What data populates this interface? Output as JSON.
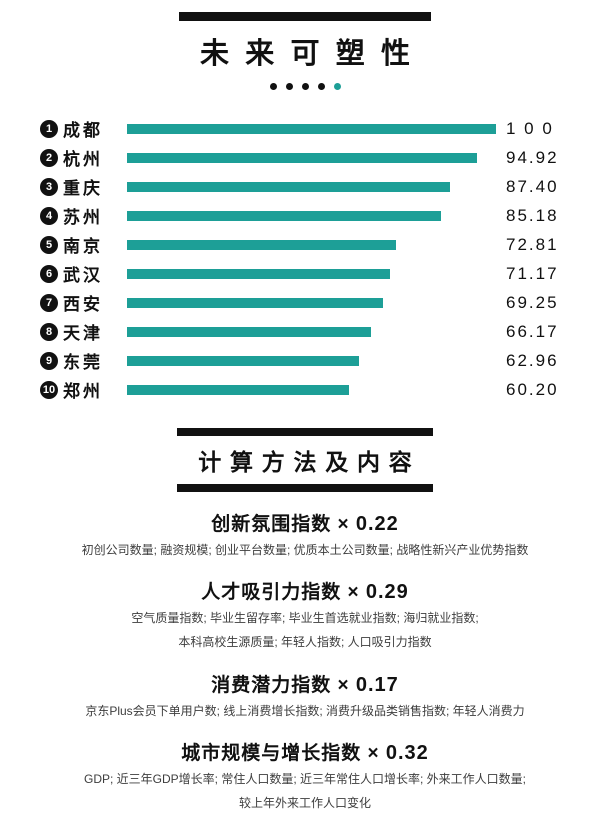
{
  "colors": {
    "accent": "#1d9f97",
    "ink": "#111111"
  },
  "header": {
    "title": "未来可塑性",
    "dots": {
      "count": 5,
      "accent_index": 4
    }
  },
  "chart_data": {
    "type": "bar",
    "orientation": "horizontal",
    "title": "未来可塑性",
    "categories": [
      "成都",
      "杭州",
      "重庆",
      "苏州",
      "南京",
      "武汉",
      "西安",
      "天津",
      "东莞",
      "郑州"
    ],
    "ranks": [
      1,
      2,
      3,
      4,
      5,
      6,
      7,
      8,
      9,
      10
    ],
    "values": [
      100,
      94.92,
      87.4,
      85.18,
      72.81,
      71.17,
      69.25,
      66.17,
      62.96,
      60.2
    ],
    "value_labels": [
      "1 0 0",
      "94.92",
      "87.40",
      "85.18",
      "72.81",
      "71.17",
      "69.25",
      "66.17",
      "62.96",
      "60.20"
    ],
    "xlim": [
      0,
      100
    ],
    "grid": false,
    "bar_color": "#1d9f97",
    "value_label_position": "right"
  },
  "methods": {
    "title": "计算方法及内容",
    "times_symbol": "×",
    "sections": [
      {
        "heading": "创新氛围指数",
        "weight": "0.22",
        "details": [
          "初创公司数量; 融资规模; 创业平台数量; 优质本土公司数量; 战略性新兴产业优势指数"
        ]
      },
      {
        "heading": "人才吸引力指数",
        "weight": "0.29",
        "details": [
          "空气质量指数; 毕业生留存率; 毕业生首选就业指数; 海归就业指数;",
          "本科高校生源质量; 年轻人指数; 人口吸引力指数"
        ]
      },
      {
        "heading": "消费潜力指数",
        "weight": "0.17",
        "details": [
          "京东Plus会员下单用户数; 线上消费增长指数; 消费升级品类销售指数; 年轻人消费力"
        ]
      },
      {
        "heading": "城市规模与增长指数",
        "weight": "0.32",
        "details": [
          "GDP; 近三年GDP增长率; 常住人口数量; 近三年常住人口增长率; 外来工作人口数量;",
          "较上年外来工作人口变化"
        ]
      }
    ]
  }
}
